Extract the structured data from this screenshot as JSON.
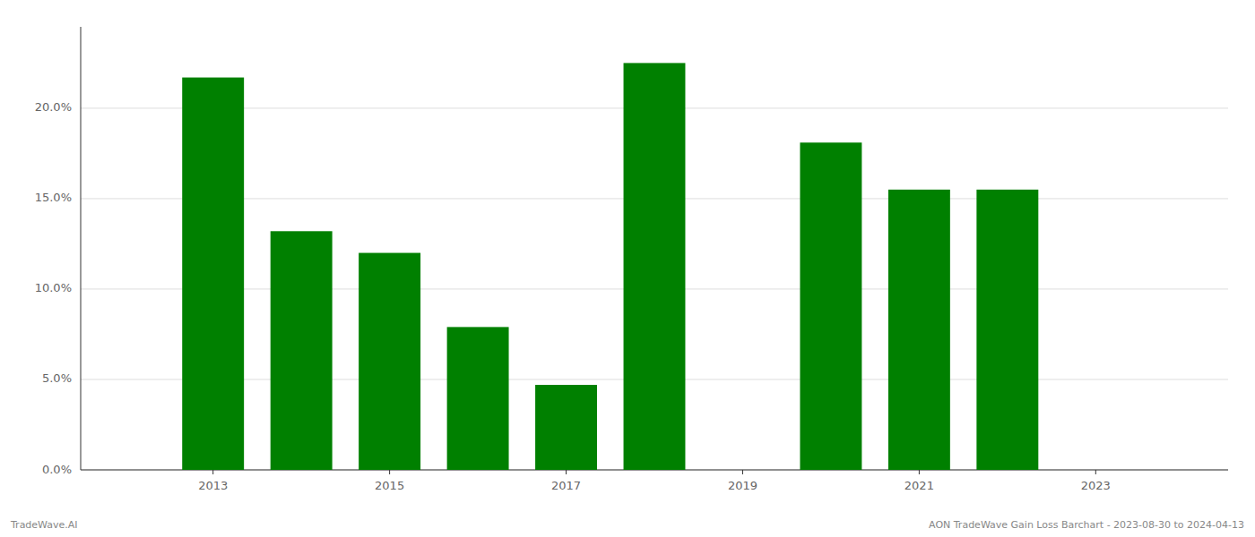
{
  "chart_data": {
    "type": "bar",
    "x": [
      2013,
      2014,
      2015,
      2016,
      2017,
      2018,
      2020,
      2021,
      2022
    ],
    "values": [
      0.217,
      0.132,
      0.12,
      0.079,
      0.047,
      0.225,
      0.181,
      0.155,
      0.155
    ],
    "color": "#008000",
    "xlim": [
      2011.5,
      2024.5
    ],
    "xticks": [
      2013,
      2015,
      2017,
      2019,
      2021,
      2023
    ],
    "ylim": [
      0.0,
      0.245
    ],
    "yticks": [
      {
        "value": 0.0,
        "label": "0.0%"
      },
      {
        "value": 0.05,
        "label": "5.0%"
      },
      {
        "value": 0.1,
        "label": "10.0%"
      },
      {
        "value": 0.15,
        "label": "15.0%"
      },
      {
        "value": 0.2,
        "label": "20.0%"
      }
    ],
    "grid": true,
    "annotations": [
      "TradeWave.AI",
      "AON TradeWave Gain Loss Barchart - 2023-08-30 to 2024-04-13"
    ]
  }
}
